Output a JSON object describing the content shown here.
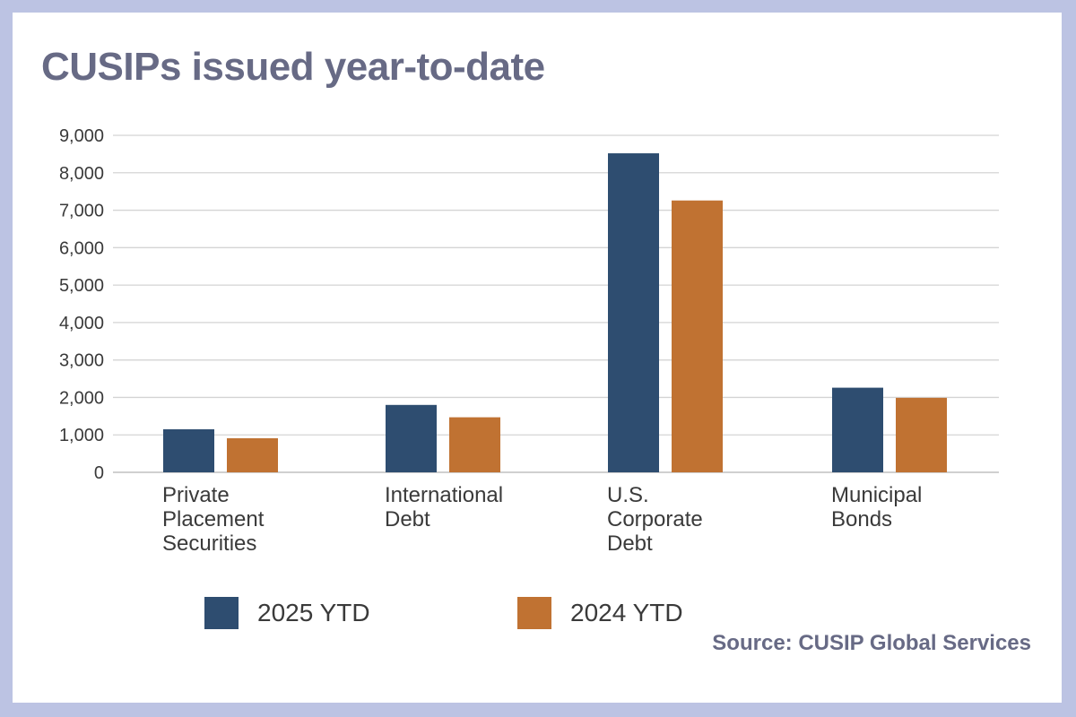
{
  "chart_data": {
    "type": "bar",
    "title": "CUSIPs issued year-to-date",
    "source": "Source: CUSIP Global Services",
    "categories": [
      [
        "Private",
        "Placement",
        "Securities"
      ],
      [
        "International",
        "Debt"
      ],
      [
        "U.S.",
        "Corporate",
        "Debt"
      ],
      [
        "Municipal",
        "Bonds"
      ]
    ],
    "series": [
      {
        "name": "2025 YTD",
        "color": "#2e4d70",
        "values": [
          1150,
          1800,
          8520,
          2260
        ]
      },
      {
        "name": "2024 YTD",
        "color": "#c07232",
        "values": [
          910,
          1470,
          7260,
          1990
        ]
      }
    ],
    "ylim": [
      0,
      9000
    ],
    "yticks": [
      "0",
      "1,000",
      "2,000",
      "3,000",
      "4,000",
      "5,000",
      "6,000",
      "7,000",
      "8,000",
      "9,000"
    ],
    "grid": true,
    "legend_position": "bottom"
  }
}
